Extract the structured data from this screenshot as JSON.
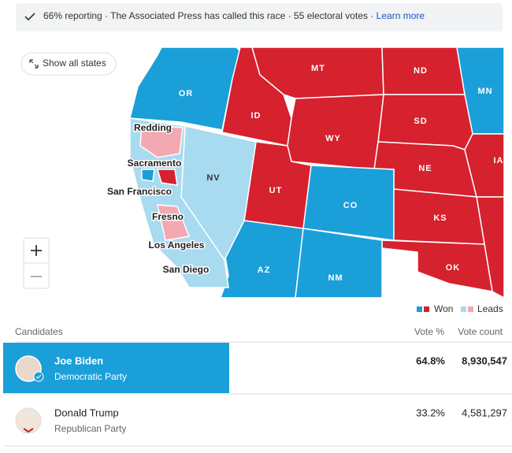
{
  "status": {
    "text": "66% reporting · The Associated Press has called this race · 55 electoral votes ·",
    "link": "Learn more"
  },
  "map": {
    "button": "Show all states",
    "states": [
      "OR",
      "MT",
      "ND",
      "MN",
      "ID",
      "SD",
      "WY",
      "NE",
      "IA",
      "UT",
      "NV",
      "CO",
      "KS",
      "OK",
      "AZ",
      "NM"
    ],
    "cities": [
      "Redding",
      "Sacramento",
      "San Francisco",
      "Fresno",
      "Los Angeles",
      "San Diego"
    ],
    "legend": {
      "won": "Won",
      "leads": "Leads"
    }
  },
  "table": {
    "headers": {
      "candidates": "Candidates",
      "vote_pct": "Vote %",
      "vote_count": "Vote count"
    },
    "rows": [
      {
        "name": "Joe Biden",
        "party": "Democratic Party",
        "vote_pct": "64.8%",
        "vote_count": "8,930,547"
      },
      {
        "name": "Donald Trump",
        "party": "Republican Party",
        "vote_pct": "33.2%",
        "vote_count": "4,581,297"
      }
    ]
  }
}
